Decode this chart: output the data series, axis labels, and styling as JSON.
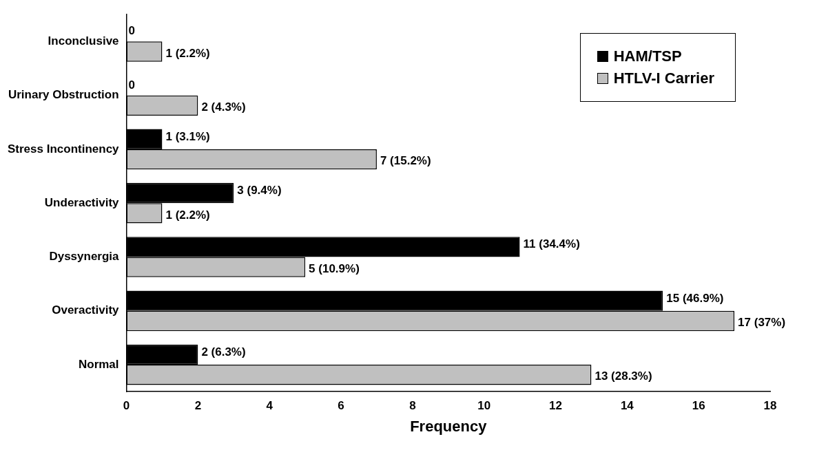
{
  "chart_data": {
    "type": "bar",
    "orientation": "horizontal",
    "xlabel": "Frequency",
    "categories": [
      "Inconclusive",
      "Urinary Obstruction",
      "Stress Incontinency",
      "Underactivity",
      "Dyssynergia",
      "Overactivity",
      "Normal"
    ],
    "series": [
      {
        "name": "HAM/TSP",
        "color": "#000000",
        "values": [
          0,
          0,
          1,
          3,
          11,
          15,
          2
        ],
        "value_labels": [
          "0",
          "0",
          "1 (3.1%)",
          "3 (9.4%)",
          "11 (34.4%)",
          "15 (46.9%)",
          "2 (6.3%)"
        ]
      },
      {
        "name": "HTLV-I Carrier",
        "color": "#c0c0c0",
        "values": [
          1,
          2,
          7,
          1,
          5,
          17,
          13
        ],
        "value_labels": [
          "1 (2.2%)",
          "2 (4.3%)",
          "7 (15.2%)",
          "1 (2.2%)",
          "5 (10.9%)",
          "17 (37%)",
          "13 (28.3%)"
        ]
      }
    ],
    "xlim": [
      0,
      18
    ],
    "xticks": [
      0,
      2,
      4,
      6,
      8,
      10,
      12,
      14,
      16,
      18
    ],
    "grid": false,
    "legend": "top right"
  }
}
